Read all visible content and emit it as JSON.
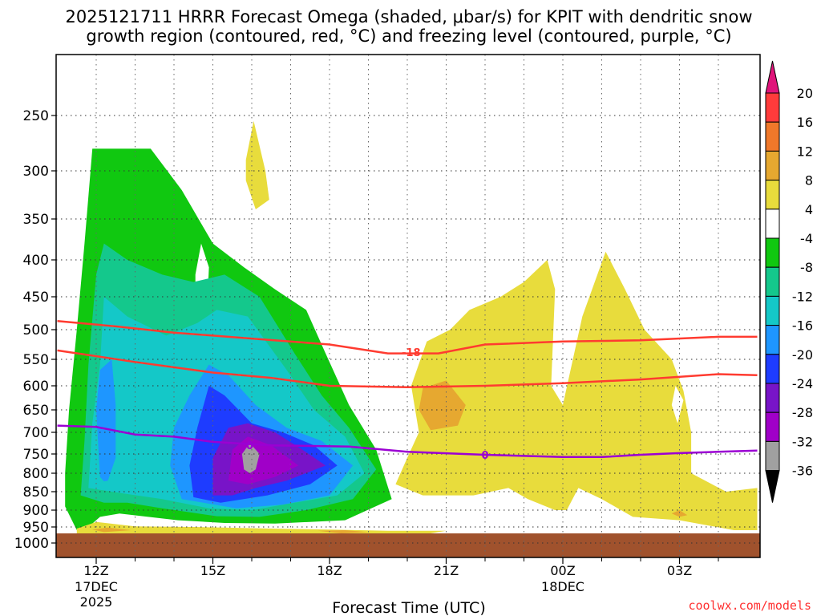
{
  "title_line1": "2025121711 HRRR Forecast Omega (shaded, μbar/s) for KPIT with dendritic snow",
  "title_line2": "growth region (contoured, red, °C) and freezing level (contoured, purple, °C)",
  "xlabel": "Forecast Time (UTC)",
  "credit": "coolwx.com/models",
  "colors": {
    "ground": "#a0522d",
    "dendritic_contour": "#ff3b30",
    "freezing_contour": "#9b00d3"
  },
  "chart_data": {
    "type": "heatmap",
    "x_ticks": [
      {
        "label": "12Z",
        "sub1": "17DEC",
        "sub2": "2025",
        "hour": 12
      },
      {
        "label": "15Z",
        "sub1": "",
        "sub2": "",
        "hour": 15
      },
      {
        "label": "18Z",
        "sub1": "",
        "sub2": "",
        "hour": 18
      },
      {
        "label": "21Z",
        "sub1": "",
        "sub2": "",
        "hour": 21
      },
      {
        "label": "00Z",
        "sub1": "18DEC",
        "sub2": "",
        "hour": 24
      },
      {
        "label": "03Z",
        "sub1": "",
        "sub2": "",
        "hour": 27
      }
    ],
    "xlim": [
      11,
      29
    ],
    "y_ticks": [
      250,
      300,
      350,
      400,
      450,
      500,
      550,
      600,
      650,
      700,
      750,
      800,
      850,
      900,
      950,
      1000
    ],
    "ylim": [
      200,
      1020
    ],
    "ground_level_hpa": 970,
    "colorbar": {
      "bins": [
        {
          "label": "20",
          "color": "#ff3b3b"
        },
        {
          "label": "16",
          "color": "#f0782a"
        },
        {
          "label": "12",
          "color": "#e6a830"
        },
        {
          "label": "8",
          "color": "#e8dc3c"
        },
        {
          "label": "4",
          "color": "#ffffff"
        },
        {
          "label": "-4",
          "color": "#10c810"
        },
        {
          "label": "-8",
          "color": "#14c88c"
        },
        {
          "label": "-12",
          "color": "#14c8c8"
        },
        {
          "label": "-16",
          "color": "#1e96ff"
        },
        {
          "label": "-20",
          "color": "#1e3cff"
        },
        {
          "label": "-24",
          "color": "#7814c8"
        },
        {
          "label": "-28",
          "color": "#a000c8"
        },
        {
          "label": "-32",
          "color": "#a0a0a0"
        },
        {
          "label": "-36",
          "color": "#000000"
        }
      ],
      "top_arrow_color": "#e0147a",
      "bottom_arrow_color": "#000000"
    },
    "regions": [
      {
        "name": "green",
        "color": "#10c810",
        "points": [
          [
            11.8,
            992
          ],
          [
            11.5,
            960
          ],
          [
            11.2,
            890
          ],
          [
            11.2,
            800
          ],
          [
            11.3,
            650
          ],
          [
            11.5,
            500
          ],
          [
            11.7,
            380
          ],
          [
            11.9,
            280
          ],
          [
            13.4,
            280
          ],
          [
            14.2,
            320
          ],
          [
            15,
            380
          ],
          [
            15.8,
            410
          ],
          [
            16.6,
            440
          ],
          [
            17.4,
            470
          ],
          [
            17.9,
            540
          ],
          [
            18.5,
            640
          ],
          [
            19.2,
            740
          ],
          [
            19.6,
            870
          ],
          [
            18.4,
            930
          ],
          [
            16.6,
            940
          ],
          [
            15.3,
            938
          ],
          [
            14.1,
            930
          ],
          [
            12.6,
            910
          ],
          [
            12.1,
            920
          ],
          [
            11.8,
            950
          ]
        ]
      },
      {
        "name": "green-hole",
        "color": "#ffffff",
        "points": [
          [
            14.7,
            380
          ],
          [
            14.9,
            410
          ],
          [
            14.85,
            470
          ],
          [
            14.7,
            500
          ],
          [
            14.55,
            460
          ],
          [
            14.55,
            420
          ]
        ]
      },
      {
        "name": "teal",
        "color": "#14c88c",
        "points": [
          [
            11.6,
            860
          ],
          [
            11.7,
            720
          ],
          [
            11.8,
            560
          ],
          [
            12,
            420
          ],
          [
            12.2,
            380
          ],
          [
            12.8,
            400
          ],
          [
            13.7,
            420
          ],
          [
            14.5,
            430
          ],
          [
            15.3,
            420
          ],
          [
            16.2,
            450
          ],
          [
            17.1,
            540
          ],
          [
            17.8,
            620
          ],
          [
            18.5,
            690
          ],
          [
            19.2,
            790
          ],
          [
            18.6,
            870
          ],
          [
            17.4,
            900
          ],
          [
            16.2,
            920
          ],
          [
            15.1,
            918
          ],
          [
            13.7,
            895
          ],
          [
            12.8,
            880
          ],
          [
            12.2,
            880
          ]
        ]
      },
      {
        "name": "cyan",
        "color": "#14c8c8",
        "points": [
          [
            11.8,
            840
          ],
          [
            11.9,
            680
          ],
          [
            12.1,
            560
          ],
          [
            12.2,
            450
          ],
          [
            12.8,
            480
          ],
          [
            13.8,
            510
          ],
          [
            14.6,
            490
          ],
          [
            15.1,
            470
          ],
          [
            15.9,
            480
          ],
          [
            16.9,
            570
          ],
          [
            17.6,
            650
          ],
          [
            18.4,
            710
          ],
          [
            18.9,
            800
          ],
          [
            18.2,
            860
          ],
          [
            17.1,
            880
          ],
          [
            16,
            900
          ],
          [
            14.9,
            895
          ],
          [
            13.7,
            870
          ],
          [
            12.7,
            855
          ]
        ]
      },
      {
        "name": "lightblue",
        "color": "#1e96ff",
        "points": [
          [
            12.1,
            810
          ],
          [
            12,
            650
          ],
          [
            12.1,
            570
          ],
          [
            12.4,
            550
          ],
          [
            12.5,
            640
          ],
          [
            12.5,
            760
          ],
          [
            12.3,
            820
          ],
          [
            12.2,
            822
          ]
        ]
      },
      {
        "name": "lightblue2",
        "color": "#1e96ff",
        "points": [
          [
            14.2,
            870
          ],
          [
            13.9,
            780
          ],
          [
            14,
            690
          ],
          [
            14.4,
            620
          ],
          [
            14.9,
            560
          ],
          [
            15.4,
            580
          ],
          [
            16.1,
            640
          ],
          [
            16.9,
            690
          ],
          [
            17.8,
            720
          ],
          [
            18.6,
            780
          ],
          [
            18,
            860
          ],
          [
            16.8,
            885
          ],
          [
            15.6,
            895
          ]
        ]
      },
      {
        "name": "blue",
        "color": "#1e3cff",
        "points": [
          [
            14.5,
            865
          ],
          [
            14.4,
            780
          ],
          [
            14.6,
            690
          ],
          [
            14.9,
            600
          ],
          [
            15.3,
            620
          ],
          [
            16,
            680
          ],
          [
            16.8,
            700
          ],
          [
            17.6,
            730
          ],
          [
            18.2,
            780
          ],
          [
            17.5,
            830
          ],
          [
            16.4,
            860
          ],
          [
            15.2,
            880
          ]
        ]
      },
      {
        "name": "violet",
        "color": "#7814c8",
        "points": [
          [
            15,
            860
          ],
          [
            15,
            760
          ],
          [
            15.4,
            690
          ],
          [
            15.9,
            680
          ],
          [
            16.6,
            700
          ],
          [
            17.3,
            740
          ],
          [
            17.9,
            780
          ],
          [
            16.9,
            820
          ],
          [
            16.1,
            840
          ],
          [
            15.5,
            860
          ]
        ]
      },
      {
        "name": "purple",
        "color": "#a000c8",
        "points": [
          [
            15.4,
            820
          ],
          [
            15.5,
            740
          ],
          [
            15.9,
            710
          ],
          [
            16.5,
            730
          ],
          [
            17.2,
            780
          ],
          [
            16.6,
            810
          ],
          [
            15.9,
            830
          ]
        ]
      },
      {
        "name": "gray",
        "color": "#a0a0a0",
        "points": [
          [
            15.8,
            790
          ],
          [
            15.75,
            750
          ],
          [
            15.95,
            725
          ],
          [
            16.2,
            750
          ],
          [
            16.1,
            790
          ],
          [
            15.95,
            800
          ]
        ]
      },
      {
        "name": "yellow-upper",
        "color": "#e8dc3c",
        "points": [
          [
            16.05,
            255
          ],
          [
            16.35,
            300
          ],
          [
            16.45,
            330
          ],
          [
            16.1,
            340
          ],
          [
            15.85,
            310
          ],
          [
            15.85,
            290
          ]
        ]
      },
      {
        "name": "yellow-low",
        "color": "#e8dc3c",
        "points": [
          [
            11.5,
            955
          ],
          [
            12,
            935
          ],
          [
            13,
            948
          ],
          [
            14.5,
            950
          ],
          [
            16.5,
            955
          ],
          [
            18,
            958
          ],
          [
            19.5,
            962
          ],
          [
            21,
            962
          ],
          [
            20.5,
            972
          ],
          [
            18,
            972
          ],
          [
            15,
            972
          ],
          [
            12.5,
            972
          ],
          [
            11.5,
            970
          ]
        ]
      },
      {
        "name": "orange-low",
        "color": "#e6a830",
        "points": [
          [
            11.9,
            958
          ],
          [
            12.3,
            952
          ],
          [
            12.9,
            960
          ],
          [
            12.2,
            966
          ]
        ]
      },
      {
        "name": "orange-low2",
        "color": "#e6a830",
        "points": [
          [
            17.7,
            962
          ],
          [
            18.4,
            960
          ],
          [
            19,
            966
          ],
          [
            18.3,
            970
          ]
        ]
      },
      {
        "name": "yellow-mid",
        "color": "#e8dc3c",
        "points": [
          [
            20.3,
            700
          ],
          [
            20.1,
            600
          ],
          [
            20.5,
            520
          ],
          [
            21.1,
            500
          ],
          [
            21.6,
            470
          ],
          [
            22.4,
            450
          ],
          [
            23,
            430
          ],
          [
            23.6,
            400
          ],
          [
            23.8,
            440
          ],
          [
            23.7,
            600
          ],
          [
            24,
            640
          ],
          [
            24.5,
            480
          ],
          [
            25.1,
            390
          ],
          [
            25.6,
            440
          ],
          [
            26.1,
            500
          ],
          [
            26.8,
            550
          ],
          [
            27.1,
            610
          ],
          [
            27.3,
            700
          ],
          [
            27.3,
            800
          ],
          [
            28.2,
            850
          ],
          [
            29,
            840
          ],
          [
            29,
            960
          ],
          [
            28.4,
            960
          ],
          [
            27,
            930
          ],
          [
            25.8,
            920
          ],
          [
            25,
            870
          ],
          [
            24.4,
            840
          ],
          [
            24.1,
            900
          ],
          [
            23.8,
            900
          ],
          [
            23.1,
            870
          ],
          [
            22.6,
            840
          ],
          [
            21.7,
            860
          ],
          [
            20.4,
            860
          ],
          [
            19.7,
            830
          ],
          [
            20,
            760
          ]
        ]
      },
      {
        "name": "yellow-mid-hole",
        "color": "#ffffff",
        "points": [
          [
            26.9,
            600
          ],
          [
            27.1,
            630
          ],
          [
            26.95,
            680
          ],
          [
            26.8,
            640
          ]
        ]
      },
      {
        "name": "orange-mid",
        "color": "#e6a830",
        "points": [
          [
            20.3,
            650
          ],
          [
            20.4,
            605
          ],
          [
            21,
            590
          ],
          [
            21.5,
            640
          ],
          [
            21.3,
            685
          ],
          [
            20.6,
            695
          ]
        ]
      },
      {
        "name": "orange-small",
        "color": "#e6a830",
        "points": [
          [
            26.8,
            910
          ],
          [
            27,
            900
          ],
          [
            27.2,
            915
          ],
          [
            27,
            920
          ]
        ]
      }
    ],
    "contours": [
      {
        "name": "dendritic-top",
        "label": "",
        "color": "#ff3b30",
        "points": [
          [
            11,
            487
          ],
          [
            12.5,
            495
          ],
          [
            14,
            505
          ],
          [
            16,
            515
          ],
          [
            18,
            525
          ],
          [
            19.5,
            540
          ],
          [
            20.8,
            540
          ],
          [
            22,
            525
          ],
          [
            24,
            520
          ],
          [
            26,
            518
          ],
          [
            28,
            512
          ],
          [
            29,
            512
          ]
        ]
      },
      {
        "name": "dendritic-bottom",
        "label": "-18",
        "label_at": [
          20.1,
          538
        ],
        "color": "#ff3b30",
        "points": [
          [
            11,
            535
          ],
          [
            13,
            555
          ],
          [
            15,
            575
          ],
          [
            16.5,
            585
          ],
          [
            18,
            600
          ],
          [
            20,
            603
          ],
          [
            22,
            600
          ],
          [
            24,
            595
          ],
          [
            26,
            588
          ],
          [
            28,
            578
          ],
          [
            29,
            580
          ]
        ]
      },
      {
        "name": "freezing-level",
        "label": "0",
        "label_at": [
          22,
          752
        ],
        "color": "#9b00d3",
        "points": [
          [
            11,
            685
          ],
          [
            12,
            688
          ],
          [
            13,
            705
          ],
          [
            14,
            710
          ],
          [
            15,
            722
          ],
          [
            16.5,
            730
          ],
          [
            18.5,
            733
          ],
          [
            20,
            745
          ],
          [
            22,
            752
          ],
          [
            24,
            758
          ],
          [
            25,
            758
          ],
          [
            26,
            752
          ],
          [
            27,
            748
          ],
          [
            28,
            745
          ],
          [
            29,
            742
          ]
        ],
        "extra_label": "0",
        "extra_label_at": [
          15.95,
          730
        ]
      }
    ]
  }
}
